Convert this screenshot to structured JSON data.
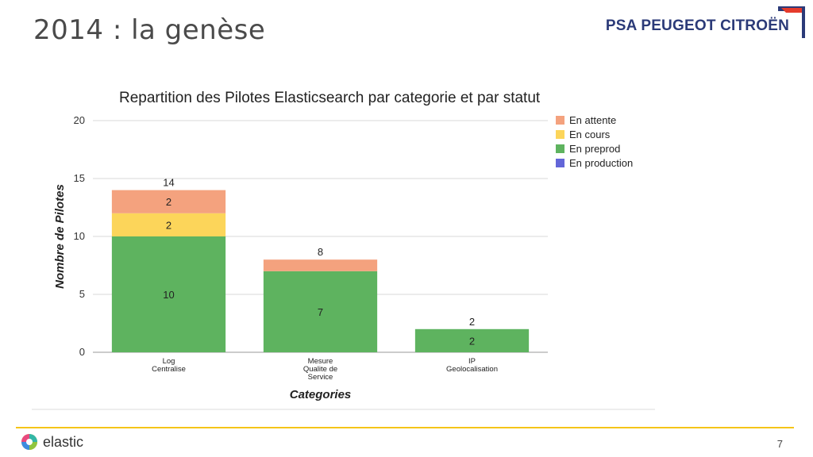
{
  "slide": {
    "title": "2014 : la genèse",
    "brand": "PSA PEUGEOT CITROËN",
    "footer_logo_text": "elastic",
    "page_number": "7"
  },
  "colors": {
    "en_attente": "#f4a27e",
    "en_cours": "#fcd55a",
    "en_preprod": "#5eb35f",
    "en_production": "#6366d8",
    "footer_line": "#f5c518"
  },
  "chart_data": {
    "type": "bar",
    "stacked": true,
    "title": "Repartition des Pilotes Elasticsearch par categorie et par statut",
    "xlabel": "Categories",
    "ylabel": "Nombre de Pilotes",
    "ylim": [
      0,
      20
    ],
    "yticks": [
      0,
      5,
      10,
      15,
      20
    ],
    "grid": true,
    "legend_position": "right",
    "categories": [
      [
        "Log",
        "Centralise"
      ],
      [
        "Mesure",
        "Qualite de",
        "Service"
      ],
      [
        "IP",
        "Geolocalisation"
      ]
    ],
    "series": [
      {
        "name": "En preprod",
        "color": "#5eb35f",
        "values": [
          10,
          7,
          2
        ]
      },
      {
        "name": "En cours",
        "color": "#fcd55a",
        "values": [
          2,
          0,
          0
        ]
      },
      {
        "name": "En attente",
        "color": "#f4a27e",
        "values": [
          2,
          1,
          0
        ]
      },
      {
        "name": "En production",
        "color": "#6366d8",
        "values": [
          0,
          0,
          0
        ]
      }
    ],
    "segment_labels": [
      [
        "10",
        "2",
        "2"
      ],
      [
        "7",
        "",
        ""
      ],
      [
        "2",
        "",
        ""
      ]
    ],
    "totals": [
      "14",
      "8",
      "2"
    ],
    "legend_order": [
      "En attente",
      "En cours",
      "En preprod",
      "En production"
    ]
  }
}
